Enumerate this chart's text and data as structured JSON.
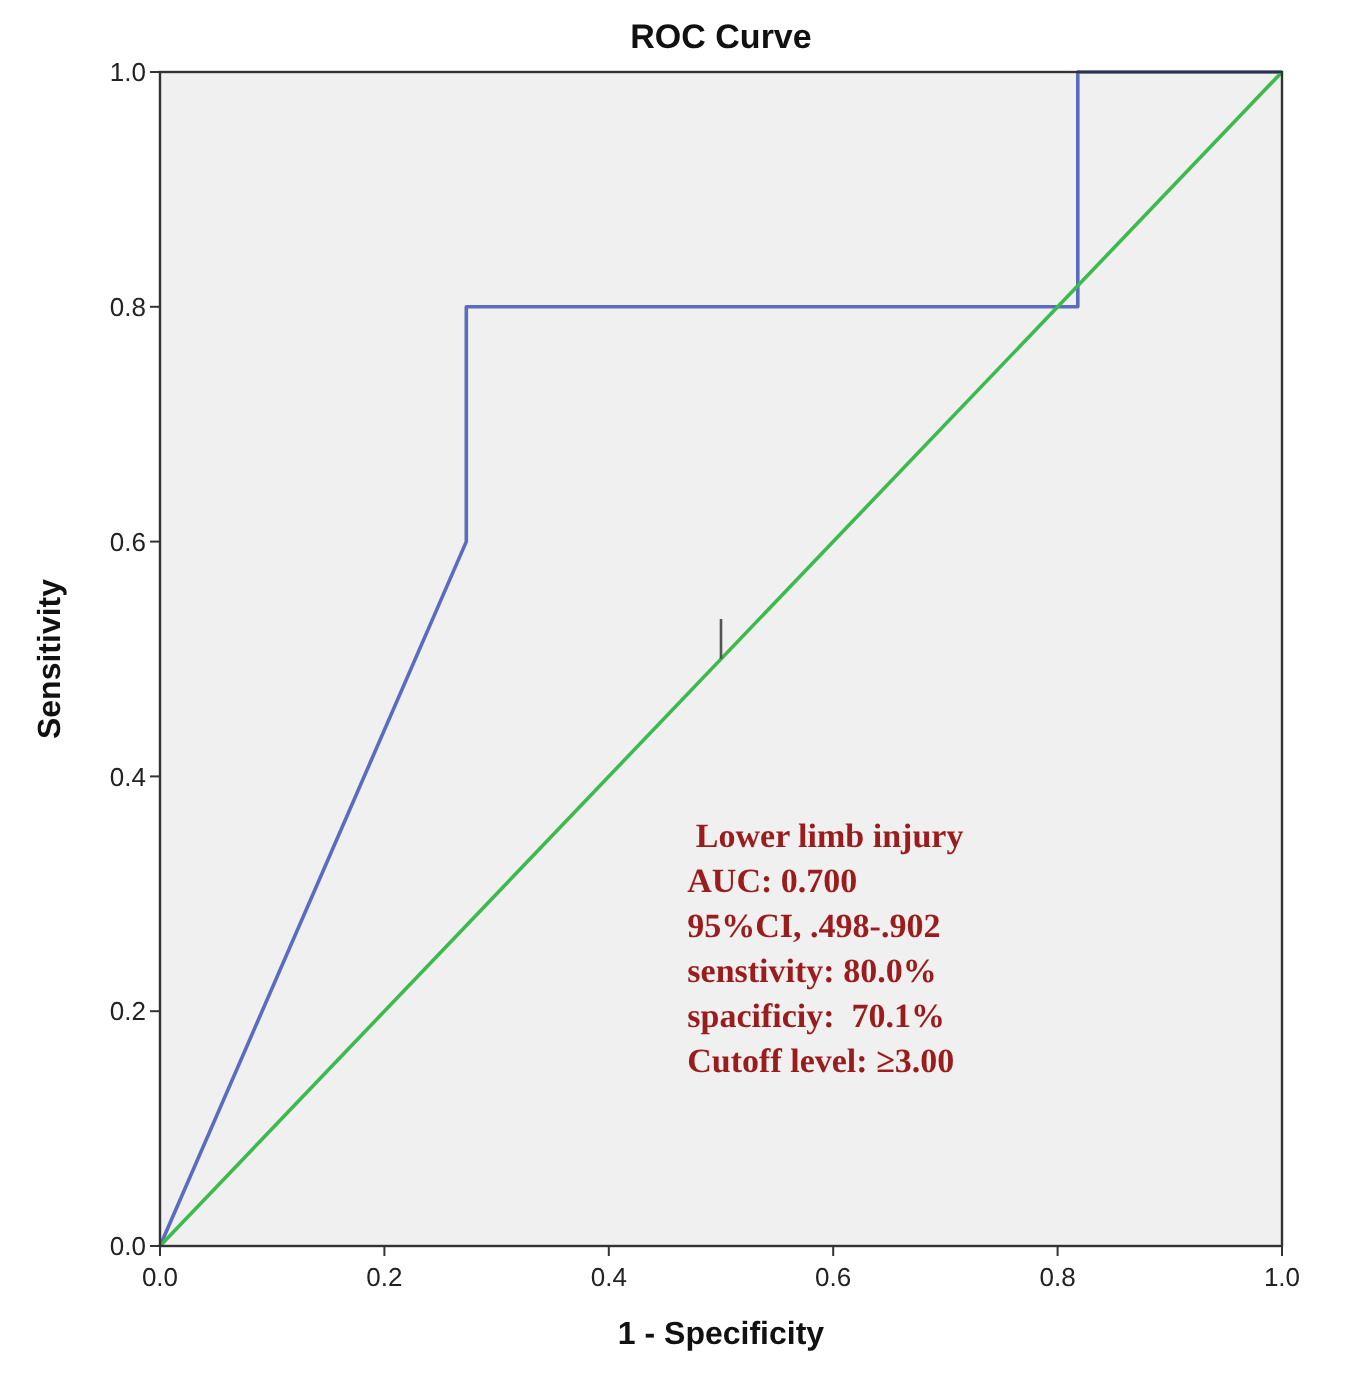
{
  "chart_data": {
    "type": "line",
    "title": "ROC Curve",
    "xlabel": "1 - Specificity",
    "ylabel": "Sensitivity",
    "series": [
      {
        "color": "#5a6cbf",
        "x": [
          0,
          0.273,
          0.273,
          0.818,
          0.818,
          1
        ],
        "values": [
          0,
          0.6,
          0.8,
          0.8,
          1,
          1
        ]
      },
      {
        "color": "#3cba4c",
        "x": [
          0,
          1
        ],
        "values": [
          0,
          1
        ]
      }
    ],
    "xlim": [
      0,
      1
    ],
    "ylim": [
      0,
      1
    ],
    "xticks": [
      {
        "value": 0,
        "label": "0.0"
      },
      {
        "value": 0.2,
        "label": "0.2"
      },
      {
        "value": 0.4,
        "label": "0.4"
      },
      {
        "value": 0.6,
        "label": "0.6"
      },
      {
        "value": 0.8,
        "label": "0.8"
      },
      {
        "value": 1,
        "label": "1.0"
      }
    ],
    "yticks": [
      {
        "value": 0,
        "label": "0.0"
      },
      {
        "value": 0.2,
        "label": "0.2"
      },
      {
        "value": 0.4,
        "label": "0.4"
      },
      {
        "value": 0.6,
        "label": "0.6"
      },
      {
        "value": 0.8,
        "label": "0.8"
      },
      {
        "value": 1,
        "label": "1.0"
      }
    ],
    "grid": false,
    "line_style": "solid",
    "annotations": [
      " Lower limb injury",
      "AUC: 0.700",
      "95%CI, .498-.902",
      "senstivity: 80.0%",
      "spacificiy:  70.1%",
      "Cutoff level: ≥3.00"
    ]
  }
}
